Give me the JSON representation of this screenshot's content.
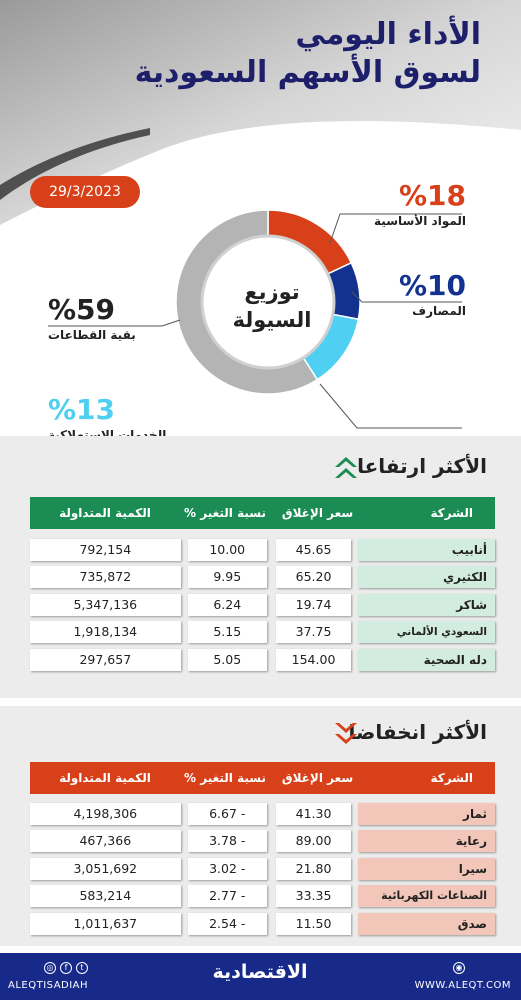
{
  "header": {
    "title_line1": "الأداء اليومي",
    "title_line2": "لسوق الأسهم السعودية",
    "date": "29/3/2023"
  },
  "chart_data": {
    "type": "pie",
    "title": "توزيع السيولة",
    "title_line1": "توزيع",
    "title_line2": "السيولة",
    "slices": [
      {
        "label": "المواد الأساسية",
        "pct_label": "%18",
        "value": 18,
        "color": "#d8401a"
      },
      {
        "label": "المصارف",
        "pct_label": "%10",
        "value": 10,
        "color": "#13318f"
      },
      {
        "label": "الخدمات الاستهلاكية",
        "pct_label": "%13",
        "value": 13,
        "color": "#4fd0f2"
      },
      {
        "label": "بقية القطاعات",
        "pct_label": "%59",
        "value": 59,
        "color": "#b4b4b4"
      }
    ]
  },
  "gainers": {
    "title": "الأكثر ارتفاعا",
    "color": "#1c8c55",
    "headers": {
      "company": "الشركة",
      "close": "سعر الإغلاق",
      "change": "نسبة التغير %",
      "qty": "الكمية المتداولة"
    },
    "rows": [
      {
        "company": "أنابيب",
        "close": "45.65",
        "change": "10.00",
        "qty": "792,154"
      },
      {
        "company": "الكثيري",
        "close": "65.20",
        "change": "9.95",
        "qty": "735,872"
      },
      {
        "company": "شاكر",
        "close": "19.74",
        "change": "6.24",
        "qty": "5,347,136"
      },
      {
        "company": "السعودي الألماني الصحية",
        "close": "37.75",
        "change": "5.15",
        "qty": "1,918,134"
      },
      {
        "company": "دله الصحية",
        "close": "154.00",
        "change": "5.05",
        "qty": "297,657"
      }
    ]
  },
  "losers": {
    "title": "الأكثر انخفاضا",
    "color": "#d8401a",
    "headers": {
      "company": "الشركة",
      "close": "سعر الإغلاق",
      "change": "نسبة التغير %",
      "qty": "الكمية المتداولة"
    },
    "rows": [
      {
        "company": "ثمار",
        "close": "41.30",
        "change": "6.67 -",
        "qty": "4,198,306"
      },
      {
        "company": "رعاية",
        "close": "89.00",
        "change": "3.78 -",
        "qty": "467,366"
      },
      {
        "company": "سيرا",
        "close": "21.80",
        "change": "3.02 -",
        "qty": "3,051,692"
      },
      {
        "company": "الصناعات الكهربائية",
        "close": "33.35",
        "change": "2.77 -",
        "qty": "583,214"
      },
      {
        "company": "صدق",
        "close": "11.50",
        "change": "2.54 -",
        "qty": "1,011,637"
      }
    ]
  },
  "footer": {
    "brand": "الاقتصادية",
    "handle": "ALEQTISADIAH",
    "site": "WWW.ALEQT.COM"
  }
}
